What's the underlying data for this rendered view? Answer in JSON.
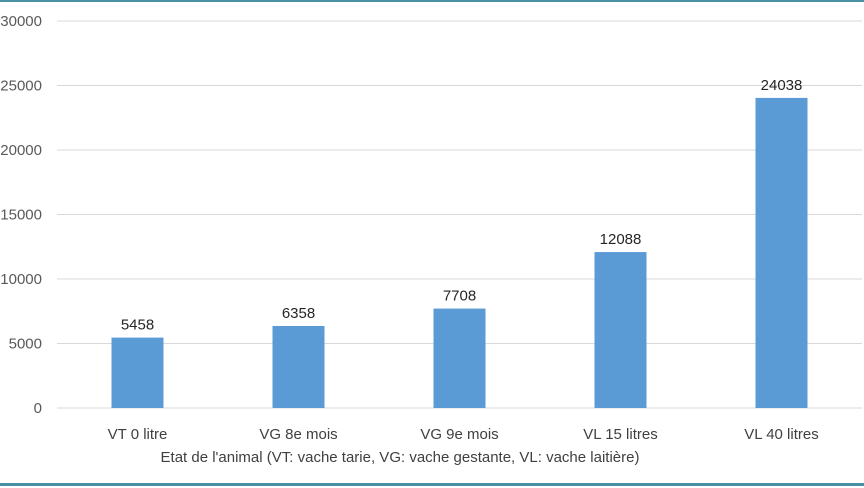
{
  "chart_data": {
    "type": "bar",
    "categories": [
      "VT 0 litre",
      "VG 8e mois",
      "VG 9e mois",
      "VL 15 litres",
      "VL 40 litres"
    ],
    "values": [
      5458,
      6358,
      7708,
      12088,
      24038
    ],
    "data_labels": [
      "5458",
      "6358",
      "7708",
      "12088",
      "24038"
    ],
    "xlabel": "Etat de l'animal (VT: vache tarie, VG: vache gestante, VL: vache laitière)",
    "ylabel": "",
    "ylim": [
      0,
      30000
    ],
    "yticks": [
      0,
      5000,
      10000,
      15000,
      20000,
      25000,
      30000
    ],
    "ytick_labels": [
      "0",
      "5000",
      "10000",
      "15000",
      "20000",
      "25000",
      "30000"
    ],
    "grid": true,
    "legend": "none",
    "bar_color": "#5b9bd5",
    "grid_color": "#d9d9d9"
  }
}
